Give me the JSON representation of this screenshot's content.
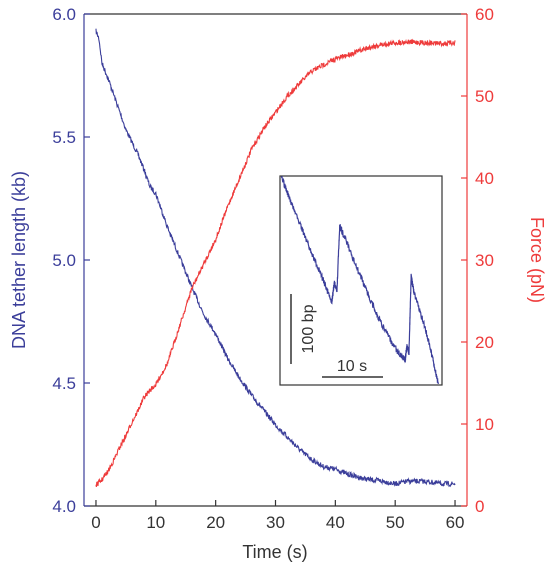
{
  "chart_data": {
    "type": "line",
    "xlabel": "Time (s)",
    "ylabel_left": "DNA tether length (kb)",
    "ylabel_right": "Force (pN)",
    "xlim": [
      -2,
      62
    ],
    "ylim_left": [
      4.0,
      6.0
    ],
    "ylim_right": [
      0,
      60
    ],
    "x_ticks": [
      "0",
      "10",
      "20",
      "30",
      "40",
      "50",
      "60"
    ],
    "y_left_ticks": [
      "4.0",
      "4.5",
      "5.0",
      "5.5",
      "6.0"
    ],
    "y_right_ticks": [
      "0",
      "10",
      "20",
      "30",
      "40",
      "50",
      "60"
    ],
    "grid": false,
    "colors": {
      "length": "#3b3e9a",
      "force": "#ee3b3b",
      "axis": "#333333"
    },
    "series": [
      {
        "name": "DNA tether length",
        "axis": "left",
        "x": [
          0,
          0.5,
          1,
          2,
          3,
          4,
          5,
          6,
          7,
          8,
          9,
          10,
          12,
          14,
          16,
          18,
          20,
          22,
          24,
          26,
          28,
          30,
          32,
          34,
          36,
          38,
          40,
          42,
          45,
          48,
          50,
          52,
          55,
          58,
          60
        ],
        "y": [
          5.93,
          5.9,
          5.8,
          5.74,
          5.67,
          5.6,
          5.53,
          5.48,
          5.43,
          5.37,
          5.3,
          5.27,
          5.13,
          5.01,
          4.89,
          4.78,
          4.7,
          4.6,
          4.52,
          4.45,
          4.39,
          4.33,
          4.28,
          4.23,
          4.19,
          4.16,
          4.15,
          4.13,
          4.11,
          4.1,
          4.09,
          4.1,
          4.1,
          4.09,
          4.09
        ]
      },
      {
        "name": "Force",
        "axis": "right",
        "x": [
          0,
          1,
          2,
          3,
          4,
          5,
          6,
          7,
          8,
          9,
          10,
          12,
          14,
          16,
          18,
          20,
          22,
          24,
          26,
          28,
          30,
          32,
          34,
          36,
          38,
          40,
          42,
          44,
          46,
          48,
          50,
          52,
          55,
          58,
          60
        ],
        "y": [
          2.5,
          3.2,
          4.2,
          5.6,
          7.2,
          8.6,
          10.2,
          11.6,
          13.2,
          14.1,
          14.8,
          17.5,
          22.0,
          26.5,
          29.5,
          32.5,
          36.5,
          40.0,
          43.5,
          46.0,
          48.0,
          50.0,
          51.5,
          53.0,
          53.8,
          54.5,
          55.0,
          55.5,
          56.0,
          56.3,
          56.5,
          56.6,
          56.5,
          56.4,
          56.5
        ]
      }
    ],
    "inset": {
      "type": "line",
      "scale_bar_y_label": "100 bp",
      "scale_bar_x_label": "10 s",
      "x_span": [
        0,
        30
      ],
      "y_span": [
        0,
        300
      ],
      "trace": {
        "x": [
          0,
          2,
          4,
          6,
          8,
          9.5,
          10,
          10.5,
          11,
          12,
          14,
          16,
          18,
          20,
          22,
          23.3,
          23.6,
          24,
          24.4,
          25,
          27,
          28.5,
          29.5
        ],
        "y": [
          300,
          260,
          222,
          185,
          148,
          118,
          145,
          136,
          228,
          210,
          172,
          135,
          100,
          70,
          45,
          35,
          55,
          45,
          155,
          130,
          82,
          35,
          0
        ]
      }
    }
  }
}
